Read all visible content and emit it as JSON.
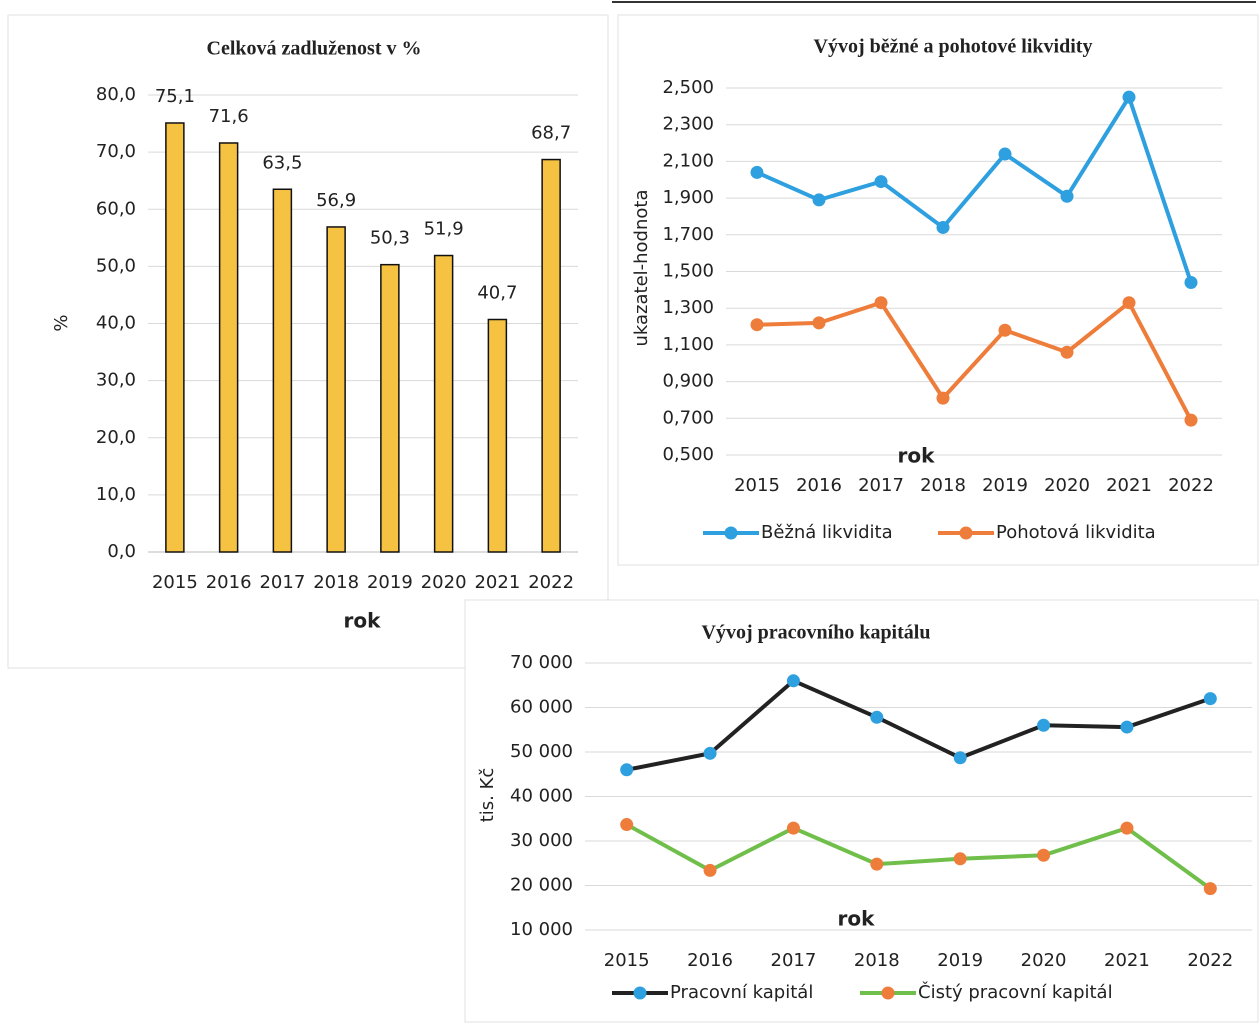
{
  "chart_data": [
    {
      "type": "bar",
      "title": "Celková zadluženost v  %",
      "y_label": "%",
      "x_label": "rok",
      "categories": [
        "2015",
        "2016",
        "2017",
        "2018",
        "2019",
        "2020",
        "2021",
        "2022"
      ],
      "values": [
        75.1,
        71.6,
        63.5,
        56.9,
        50.3,
        51.9,
        40.7,
        68.7
      ],
      "value_labels": [
        "75,1",
        "71,6",
        "63,5",
        "56,9",
        "50,3",
        "51,9",
        "40,7",
        "68,7"
      ],
      "color": "#f5c242",
      "ylim": [
        0,
        80
      ],
      "yticks": [
        {
          "value": 0,
          "label": "0,0"
        },
        {
          "value": 10,
          "label": "10,0"
        },
        {
          "value": 20,
          "label": "20,0"
        },
        {
          "value": 30,
          "label": "30,0"
        },
        {
          "value": 40,
          "label": "40,0"
        },
        {
          "value": 50,
          "label": "50,0"
        },
        {
          "value": 60,
          "label": "60,0"
        },
        {
          "value": 70,
          "label": "70,0"
        },
        {
          "value": 80,
          "label": "80,0"
        }
      ],
      "grid": true
    },
    {
      "type": "line",
      "title": "Vývoj běžné a pohotové likvidity",
      "y_label": "ukazatel-hodnota",
      "x_label": "rok",
      "categories": [
        "2015",
        "2016",
        "2017",
        "2018",
        "2019",
        "2020",
        "2021",
        "2022"
      ],
      "series": [
        {
          "name": "Běžná likvidita",
          "color": "#2e9fdf",
          "marker_color": "#2e9fdf",
          "values": [
            2.04,
            1.89,
            1.99,
            1.74,
            2.14,
            1.91,
            2.45,
            1.44
          ]
        },
        {
          "name": "Pohotová likvidita",
          "color": "#ee7d3b",
          "marker_color": "#ee7d3b",
          "values": [
            1.21,
            1.22,
            1.33,
            0.81,
            1.18,
            1.06,
            1.33,
            0.69
          ]
        }
      ],
      "ylim": [
        0.5,
        2.5
      ],
      "yticks": [
        {
          "value": 0.5,
          "label": "0,500"
        },
        {
          "value": 0.7,
          "label": "0,700"
        },
        {
          "value": 0.9,
          "label": "0,900"
        },
        {
          "value": 1.1,
          "label": "1,100"
        },
        {
          "value": 1.3,
          "label": "1,300"
        },
        {
          "value": 1.5,
          "label": "1,500"
        },
        {
          "value": 1.7,
          "label": "1,700"
        },
        {
          "value": 1.9,
          "label": "1,900"
        },
        {
          "value": 2.1,
          "label": "2,100"
        },
        {
          "value": 2.3,
          "label": "2,300"
        },
        {
          "value": 2.5,
          "label": "2,500"
        }
      ],
      "grid": true
    },
    {
      "type": "line",
      "title": "Vývoj pracovního kapitálu",
      "y_label": "tis. Kč",
      "x_label": "rok",
      "categories": [
        "2015",
        "2016",
        "2017",
        "2018",
        "2019",
        "2020",
        "2021",
        "2022"
      ],
      "series": [
        {
          "name": "Pracovní kapitál",
          "color": "#222222",
          "marker_color": "#2e9fdf",
          "values": [
            46000,
            49700,
            66000,
            57800,
            48700,
            56000,
            55600,
            62000
          ]
        },
        {
          "name": "Čistý pracovní kapitál",
          "color": "#6fbf4a",
          "marker_color": "#ee7d3b",
          "values": [
            33700,
            23400,
            32900,
            24800,
            26000,
            26800,
            32900,
            19300
          ]
        }
      ],
      "ylim": [
        10000,
        70000
      ],
      "yticks": [
        {
          "value": 10000,
          "label": "10 000"
        },
        {
          "value": 20000,
          "label": "20 000"
        },
        {
          "value": 30000,
          "label": "30 000"
        },
        {
          "value": 40000,
          "label": "40 000"
        },
        {
          "value": 50000,
          "label": "50 000"
        },
        {
          "value": 60000,
          "label": "60 000"
        },
        {
          "value": 70000,
          "label": "70 000"
        }
      ],
      "grid": true
    }
  ]
}
